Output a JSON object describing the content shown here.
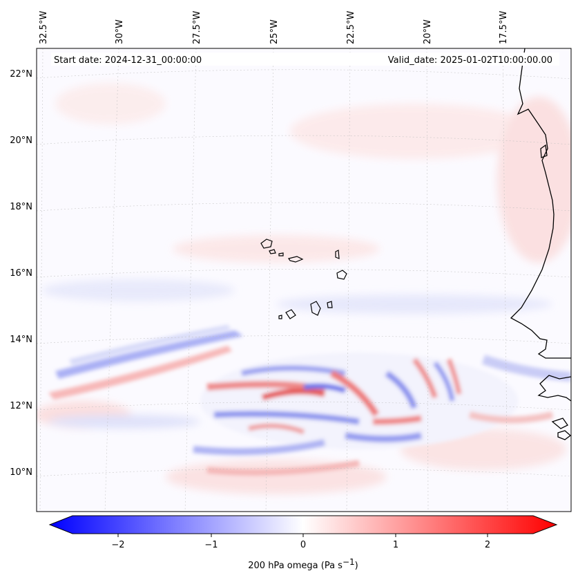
{
  "map": {
    "start_date": "Start date: 2024-12-31_00:00:00",
    "valid_date": "Valid_date: 2025-01-02T10:00:00.00",
    "lon_labels": [
      "32.5°W",
      "30°W",
      "27.5°W",
      "25°W",
      "22.5°W",
      "20°W",
      "17.5°W"
    ],
    "lat_labels": [
      "22°N",
      "20°N",
      "18°N",
      "16°N",
      "14°N",
      "12°N",
      "10°N"
    ],
    "colorbar": {
      "ticks": [
        "−2",
        "−1",
        "0",
        "1",
        "2"
      ],
      "label": "200 hPa omega (Pa s",
      "label_sup": "−1",
      "label_close": ")"
    },
    "colors": {
      "negative": "#0000ff",
      "positive": "#ff0000",
      "zero": "#ffffff",
      "coast": "#000000"
    }
  }
}
